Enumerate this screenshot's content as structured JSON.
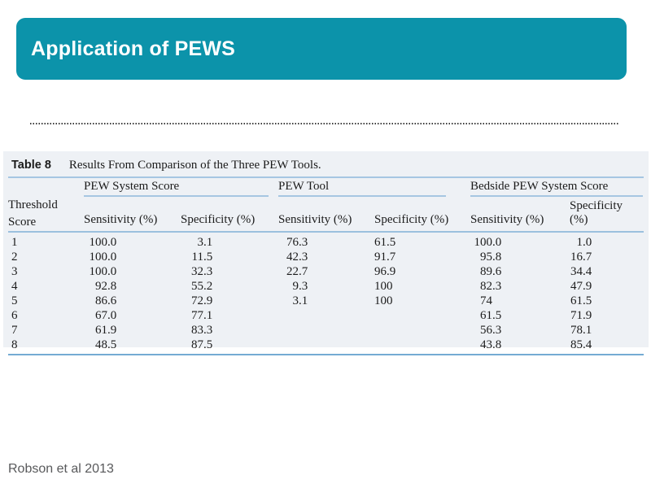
{
  "slide": {
    "title": "Application of PEWS",
    "citation": "Robson et al 2013"
  },
  "colors": {
    "header_teal": "#0c93aa",
    "table_background": "#eef1f5",
    "rule_light_blue": "#a6c6e2",
    "rule_medium_blue": "#9bc0de",
    "rule_strong_blue": "#74abd3",
    "citation_gray": "#58595b"
  },
  "table": {
    "caption_label": "Table 8",
    "caption_text": "Results From Comparison of the Three PEW Tools.",
    "row_header": "Threshold Score",
    "groups": [
      {
        "label": "PEW System Score"
      },
      {
        "label": "PEW Tool"
      },
      {
        "label": "Bedside PEW System Score"
      }
    ],
    "subheaders": [
      "Sensitivity (%)",
      "Specificity (%)",
      "Sensitivity (%)",
      "Specificity (%)",
      "Sensitivity (%)",
      "Specificity (%)"
    ],
    "rows": [
      {
        "threshold": "1",
        "values": [
          "100.0",
          "3.1",
          "76.3",
          "61.5",
          "100.0",
          "1.0"
        ]
      },
      {
        "threshold": "2",
        "values": [
          "100.0",
          "11.5",
          "42.3",
          "91.7",
          "95.8",
          "16.7"
        ]
      },
      {
        "threshold": "3",
        "values": [
          "100.0",
          "32.3",
          "22.7",
          "96.9",
          "89.6",
          "34.4"
        ]
      },
      {
        "threshold": "4",
        "values": [
          "92.8",
          "55.2",
          "9.3",
          "100",
          "82.3",
          "47.9"
        ]
      },
      {
        "threshold": "5",
        "values": [
          "86.6",
          "72.9",
          "3.1",
          "100",
          "74",
          "61.5"
        ]
      },
      {
        "threshold": "6",
        "values": [
          "67.0",
          "77.1",
          "",
          "",
          "61.5",
          "71.9"
        ]
      },
      {
        "threshold": "7",
        "values": [
          "61.9",
          "83.3",
          "",
          "",
          "56.3",
          "78.1"
        ]
      },
      {
        "threshold": "8",
        "values": [
          "48.5",
          "87.5",
          "",
          "",
          "43.8",
          "85.4"
        ]
      }
    ]
  }
}
